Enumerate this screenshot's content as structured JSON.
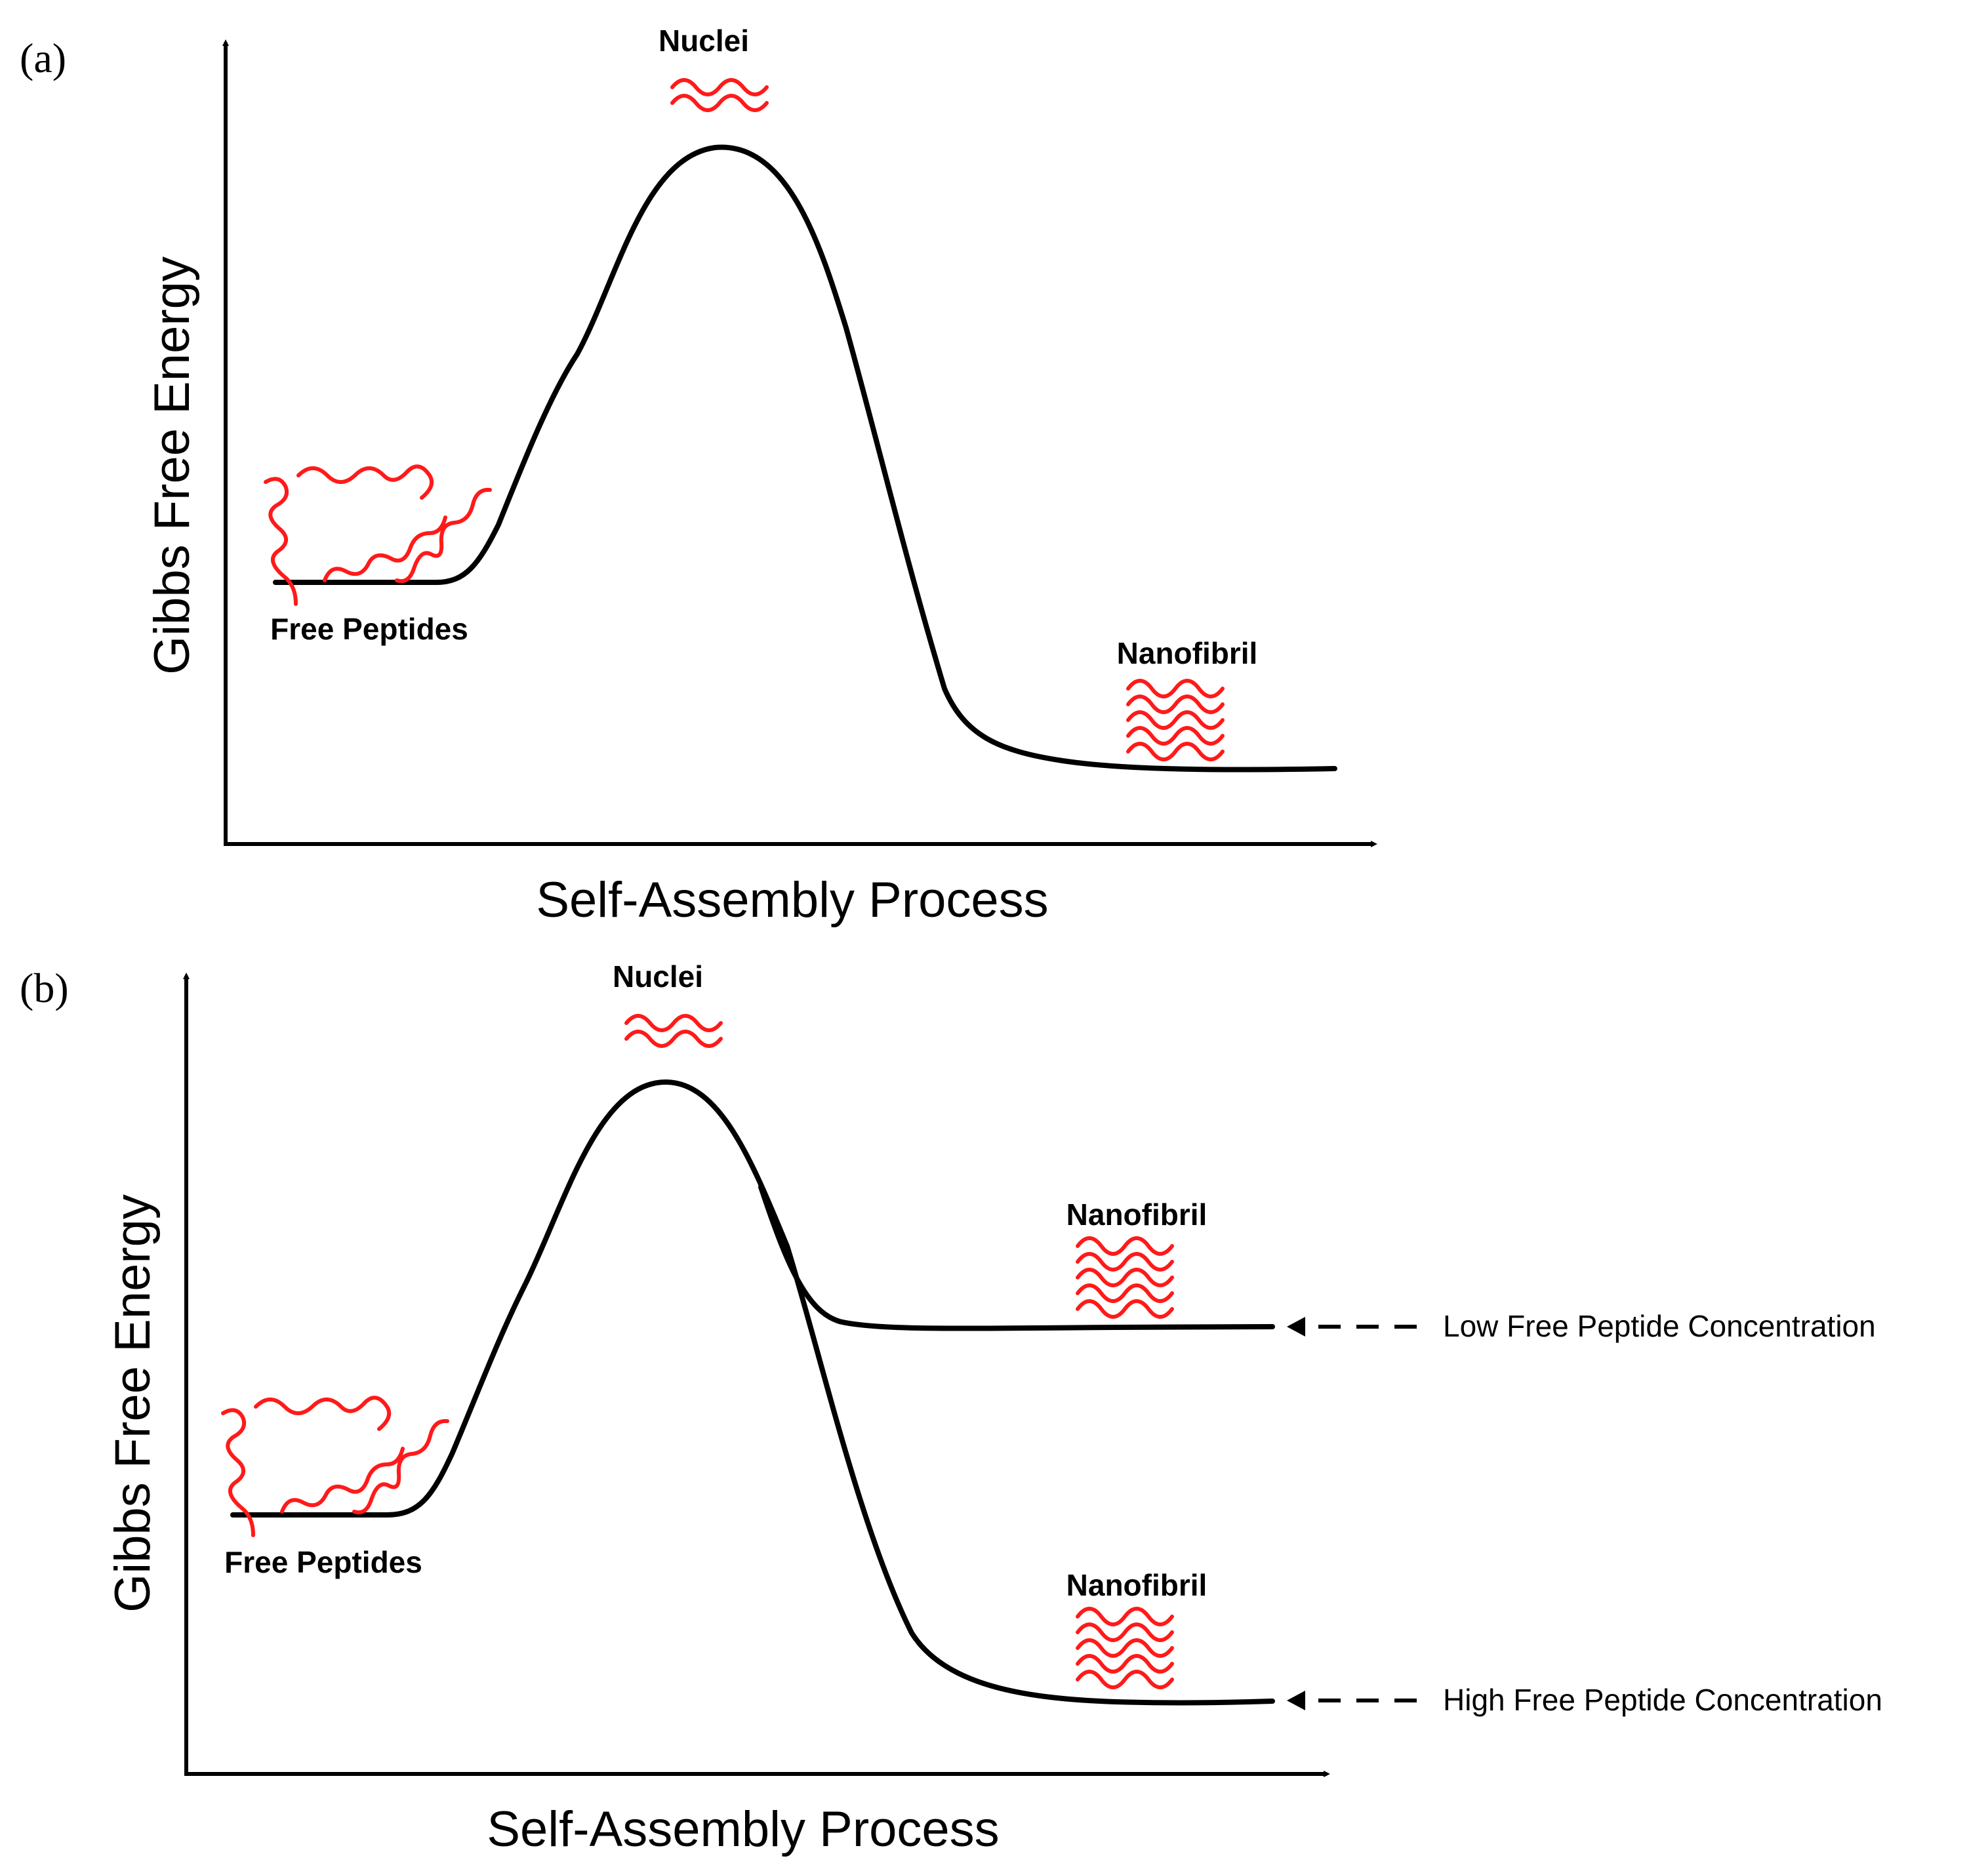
{
  "panel_a": {
    "label": "(a)",
    "y_axis_label": "Gibbs Free Energy",
    "x_axis_label": "Self-Assembly Process",
    "nuclei_label": "Nuclei",
    "free_peptides_label": "Free Peptides",
    "nanofibril_label": "Nanofibril"
  },
  "panel_b": {
    "label": "(b)",
    "y_axis_label": "Gibbs Free Energy",
    "x_axis_label": "Self-Assembly Process",
    "nuclei_label": "Nuclei",
    "free_peptides_label": "Free Peptides",
    "nanofibril_upper_label": "Nanofibril",
    "nanofibril_lower_label": "Nanofibril",
    "low_concentration_label": "Low Free Peptide Concentration",
    "high_concentration_label": "High Free Peptide Concentration"
  },
  "colors": {
    "curve": "#000000",
    "peptide": "#ff1a1a",
    "background": "#ffffff"
  }
}
